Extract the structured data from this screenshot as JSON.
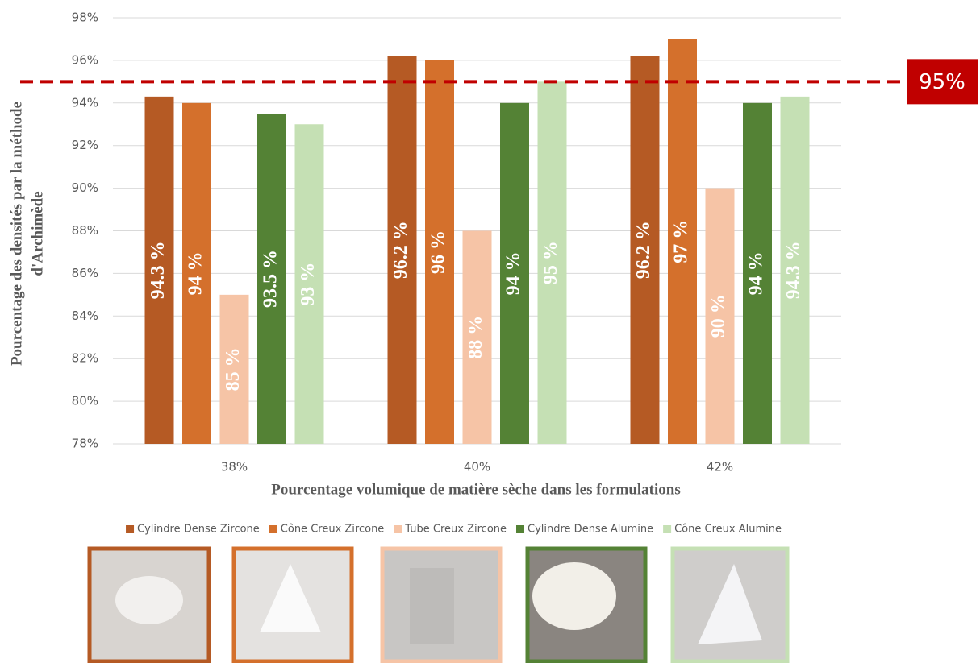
{
  "chart_data": {
    "type": "bar",
    "x_label": "Pourcentage volumique de matière sèche dans les formulations",
    "y_label": [
      "Pourcentage des densités par la méthode",
      "d'Archimède"
    ],
    "categories": [
      "38%",
      "40%",
      "42%"
    ],
    "series": [
      {
        "name": "Cylindre Dense Zircone",
        "color": "#b55a24",
        "values": [
          94.3,
          96.2,
          96.2
        ],
        "value_labels": [
          "94.3 %",
          "96.2 %",
          "96.2 %"
        ]
      },
      {
        "name": "Cône Creux Zircone",
        "color": "#d4702c",
        "values": [
          94,
          96,
          97
        ],
        "value_labels": [
          "94 %",
          "96 %",
          "97 %"
        ]
      },
      {
        "name": "Tube Creux Zircone",
        "color": "#f6c4a6",
        "values": [
          85,
          88,
          90
        ],
        "value_labels": [
          "85 %",
          "88 %",
          "90 %"
        ]
      },
      {
        "name": "Cylindre Dense Alumine",
        "color": "#548235",
        "values": [
          93.5,
          94,
          94
        ],
        "value_labels": [
          "93.5 %",
          "94 %",
          "94 %"
        ]
      },
      {
        "name": "Cône Creux Alumine",
        "color": "#c5e0b4",
        "values": [
          93,
          95,
          94.3
        ],
        "value_labels": [
          "93 %",
          "95 %",
          "94.3 %"
        ]
      }
    ],
    "ylim": [
      78,
      98
    ],
    "yticks": [
      {
        "value": 78,
        "label": "78%"
      },
      {
        "value": 80,
        "label": "80%"
      },
      {
        "value": 82,
        "label": "82%"
      },
      {
        "value": 84,
        "label": "84%"
      },
      {
        "value": 86,
        "label": "86%"
      },
      {
        "value": 88,
        "label": "88%"
      },
      {
        "value": 90,
        "label": "90%"
      },
      {
        "value": 92,
        "label": "92%"
      },
      {
        "value": 94,
        "label": "94%"
      },
      {
        "value": 96,
        "label": "96%"
      },
      {
        "value": 98,
        "label": "98%"
      }
    ],
    "grid": true,
    "reference_line": {
      "value": 95,
      "label": "95%",
      "color": "#c00000"
    }
  }
}
